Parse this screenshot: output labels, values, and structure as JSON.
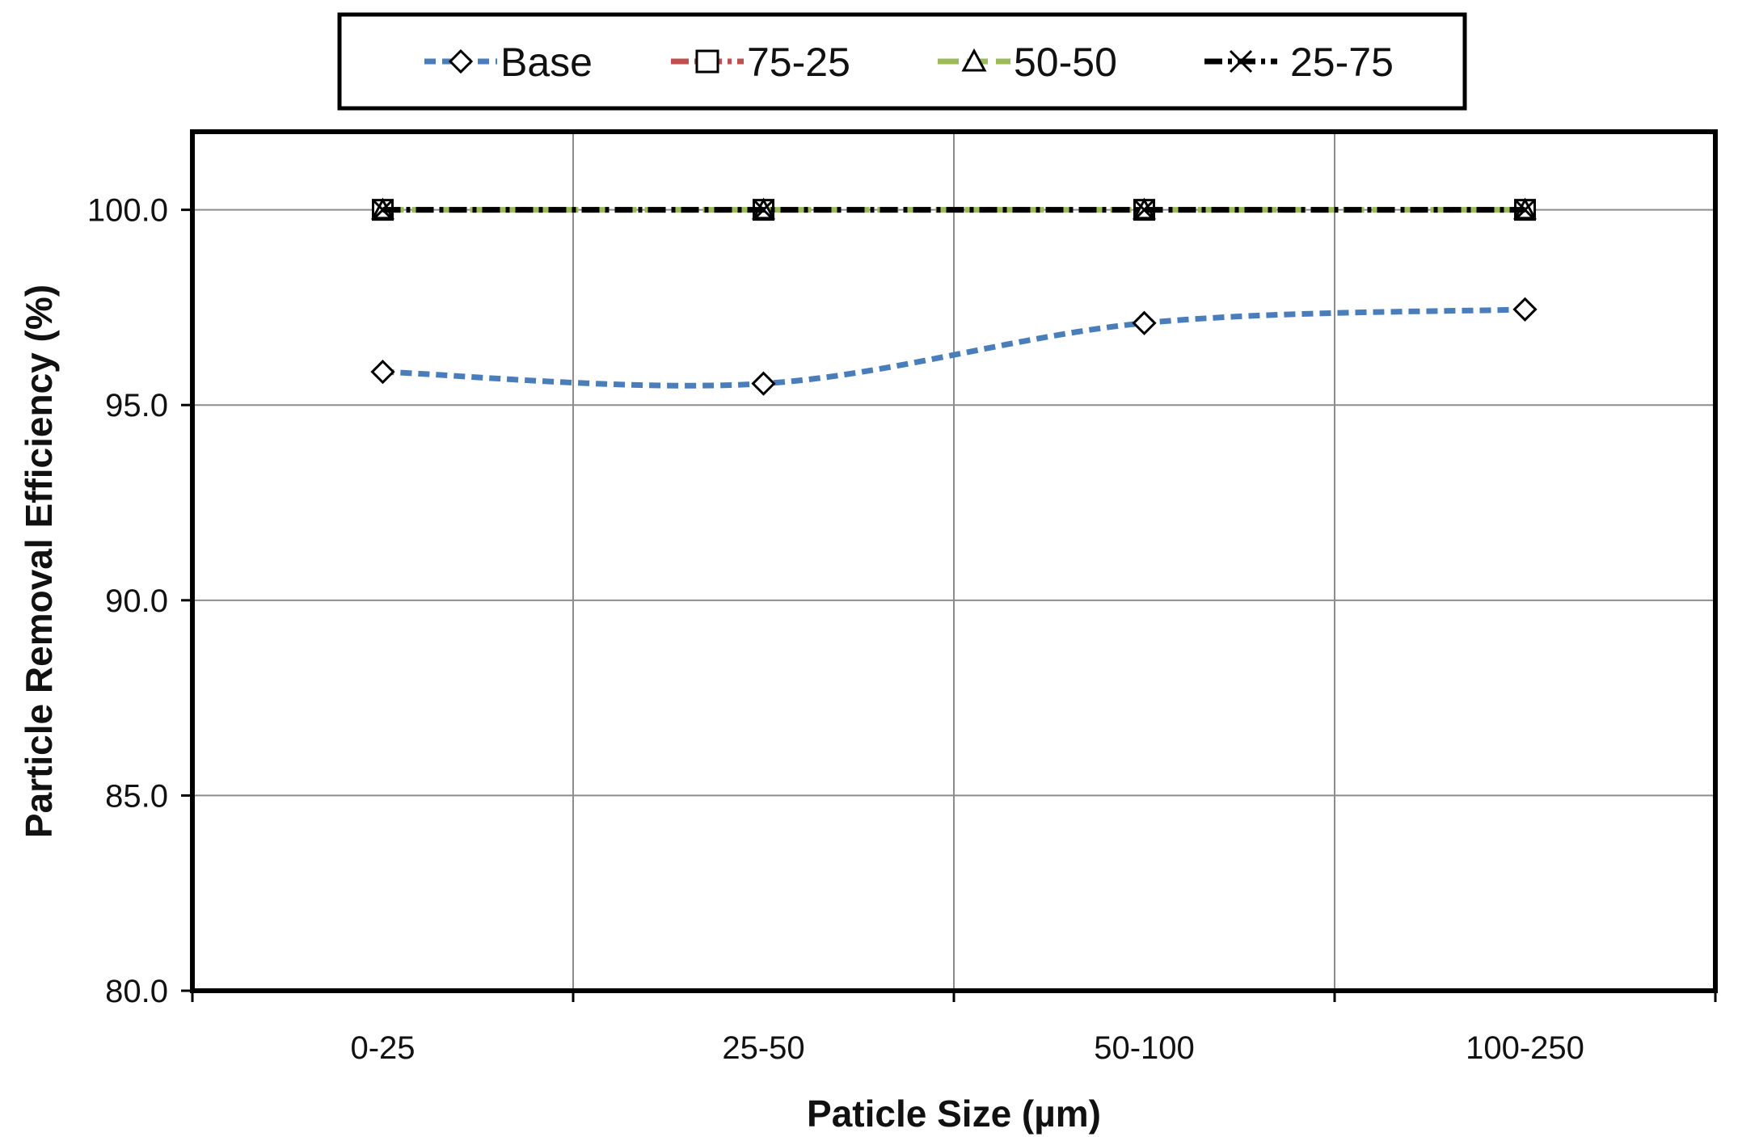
{
  "chart_data": {
    "type": "line",
    "title": "",
    "xlabel": "Paticle Size (µm)",
    "ylabel": "Particle Removal Efficiency (%)",
    "categories": [
      "0-25",
      "25-50",
      "50-100",
      "100-250"
    ],
    "ylim": [
      80.0,
      102.0
    ],
    "yticks": [
      "80.0",
      "85.0",
      "90.0",
      "95.0",
      "100.0"
    ],
    "grid": true,
    "legend_position": "top",
    "series": [
      {
        "name": "Base",
        "values": [
          95.85,
          95.55,
          97.1,
          97.45
        ],
        "color": "#4a7ebb",
        "marker": "diamond",
        "dash": "dashed",
        "smooth": true
      },
      {
        "name": "75-25",
        "values": [
          100.0,
          100.0,
          100.0,
          100.0
        ],
        "color": "#c0504d",
        "marker": "square",
        "dash": "dashdot",
        "smooth": false
      },
      {
        "name": "50-50",
        "values": [
          100.0,
          100.0,
          100.0,
          100.0
        ],
        "color": "#9bbb59",
        "marker": "triangle",
        "dash": "longdash",
        "smooth": false
      },
      {
        "name": "25-75",
        "values": [
          100.0,
          100.0,
          100.0,
          100.0
        ],
        "color": "#000000",
        "marker": "x",
        "dash": "dashdot",
        "smooth": false
      }
    ]
  }
}
